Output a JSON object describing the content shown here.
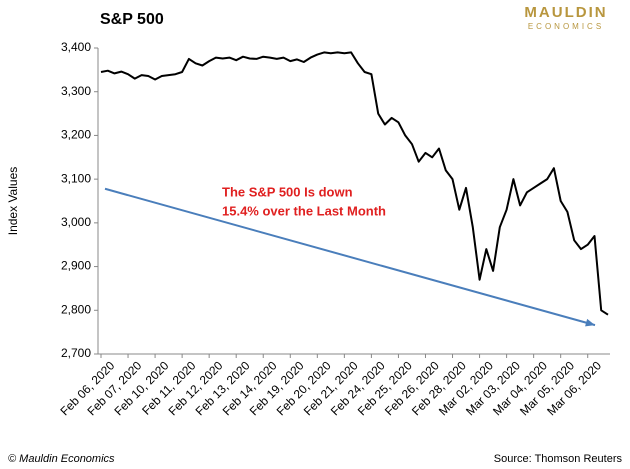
{
  "chart_data": {
    "type": "line",
    "title": "S&P 500",
    "logo": [
      "MAULDIN",
      "ECONOMICS"
    ],
    "ylabel": "Index Values",
    "annotation": [
      "The S&P 500 Is down",
      "15.4% over the Last Month"
    ],
    "footer_left": "© Mauldin Economics",
    "footer_right": "Source: Thomson Reuters",
    "categories": [
      "Feb 06, 2020",
      null,
      null,
      null,
      "Feb 07, 2020",
      null,
      null,
      null,
      "Feb 10, 2020",
      null,
      null,
      null,
      "Feb 11, 2020",
      null,
      null,
      null,
      "Feb 12, 2020",
      null,
      null,
      null,
      "Feb 13, 2020",
      null,
      null,
      null,
      "Feb 14, 2020",
      null,
      null,
      null,
      "Feb 19, 2020",
      null,
      null,
      null,
      "Feb 20, 2020",
      null,
      null,
      null,
      "Feb 21, 2020",
      null,
      null,
      null,
      "Feb 24, 2020",
      null,
      null,
      null,
      "Feb 25, 2020",
      null,
      null,
      null,
      "Feb 26, 2020",
      null,
      null,
      null,
      "Feb 28, 2020",
      null,
      null,
      null,
      "Mar 02, 2020",
      null,
      null,
      null,
      "Mar 03, 2020",
      null,
      null,
      null,
      "Mar 04, 2020",
      null,
      null,
      null,
      "Mar 05, 2020",
      null,
      null,
      null,
      "Mar 06, 2020",
      null,
      null,
      null
    ],
    "values": [
      3345,
      3348,
      3342,
      3346,
      3340,
      3330,
      3338,
      3336,
      3328,
      3336,
      3338,
      3340,
      3345,
      3375,
      3365,
      3360,
      3370,
      3378,
      3376,
      3378,
      3372,
      3380,
      3376,
      3375,
      3380,
      3378,
      3375,
      3378,
      3370,
      3374,
      3368,
      3378,
      3385,
      3390,
      3388,
      3390,
      3388,
      3390,
      3365,
      3345,
      3340,
      3250,
      3225,
      3240,
      3230,
      3200,
      3180,
      3140,
      3160,
      3150,
      3170,
      3120,
      3100,
      3030,
      3080,
      2990,
      2870,
      2940,
      2890,
      2990,
      3030,
      3100,
      3040,
      3070,
      3080,
      3090,
      3100,
      3125,
      3050,
      3025,
      2960,
      2940,
      2950,
      2970,
      2800,
      2790
    ],
    "color": "#000000",
    "arrow": {
      "from": 3078,
      "to": 2766,
      "color": "#4a7ebb"
    },
    "annotation_color": "#e02020",
    "ylim": [
      2700,
      3400
    ],
    "yticks": [
      {
        "value": 2700,
        "label": "2,700"
      },
      {
        "value": 2800,
        "label": "2,800"
      },
      {
        "value": 2900,
        "label": "2,900"
      },
      {
        "value": 3000,
        "label": "3,000"
      },
      {
        "value": 3100,
        "label": "3,100"
      },
      {
        "value": 3200,
        "label": "3,200"
      },
      {
        "value": 3300,
        "label": "3,300"
      },
      {
        "value": 3400,
        "label": "3,400"
      }
    ],
    "grid": false
  }
}
